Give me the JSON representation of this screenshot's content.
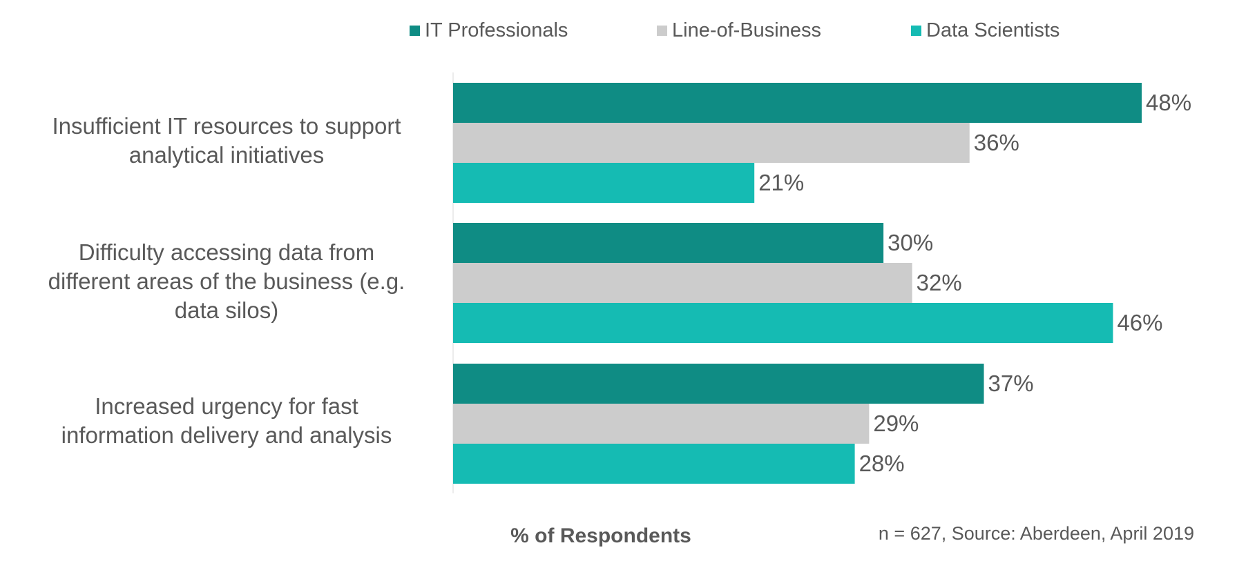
{
  "chart_data": {
    "type": "bar",
    "orientation": "horizontal",
    "categories": [
      "Insufficient IT resources to support analytical initiatives",
      "Difficulty accessing data from different areas of the business (e.g. data silos)",
      "Increased urgency for fast information delivery and analysis"
    ],
    "category_lines": [
      [
        "Insufficient IT resources to support",
        "analytical initiatives"
      ],
      [
        "Difficulty accessing data from",
        "different areas of the business (e.g.",
        "data silos)"
      ],
      [
        "Increased urgency for fast",
        "information delivery and analysis"
      ]
    ],
    "series": [
      {
        "name": "IT Professionals",
        "color": "#0F8C84",
        "values": [
          48,
          30,
          37
        ]
      },
      {
        "name": "Line-of-Business",
        "color": "#CCCCCC",
        "values": [
          36,
          32,
          29
        ]
      },
      {
        "name": "Data Scientists",
        "color": "#15BBB3",
        "values": [
          21,
          46,
          28
        ]
      }
    ],
    "value_suffix": "%",
    "xlim": [
      0,
      50
    ],
    "xlabel": "% of Respondents",
    "legend_position": "top",
    "grid": false,
    "footnote": "n = 627, Source: Aberdeen, April 2019"
  }
}
